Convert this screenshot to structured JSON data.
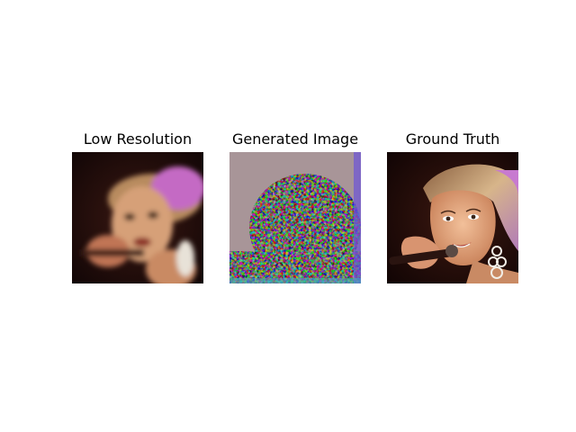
{
  "panels": [
    {
      "id": "low-resolution",
      "title": "Low Resolution"
    },
    {
      "id": "generated-image",
      "title": "Generated Image"
    },
    {
      "id": "ground-truth",
      "title": "Ground Truth"
    }
  ]
}
